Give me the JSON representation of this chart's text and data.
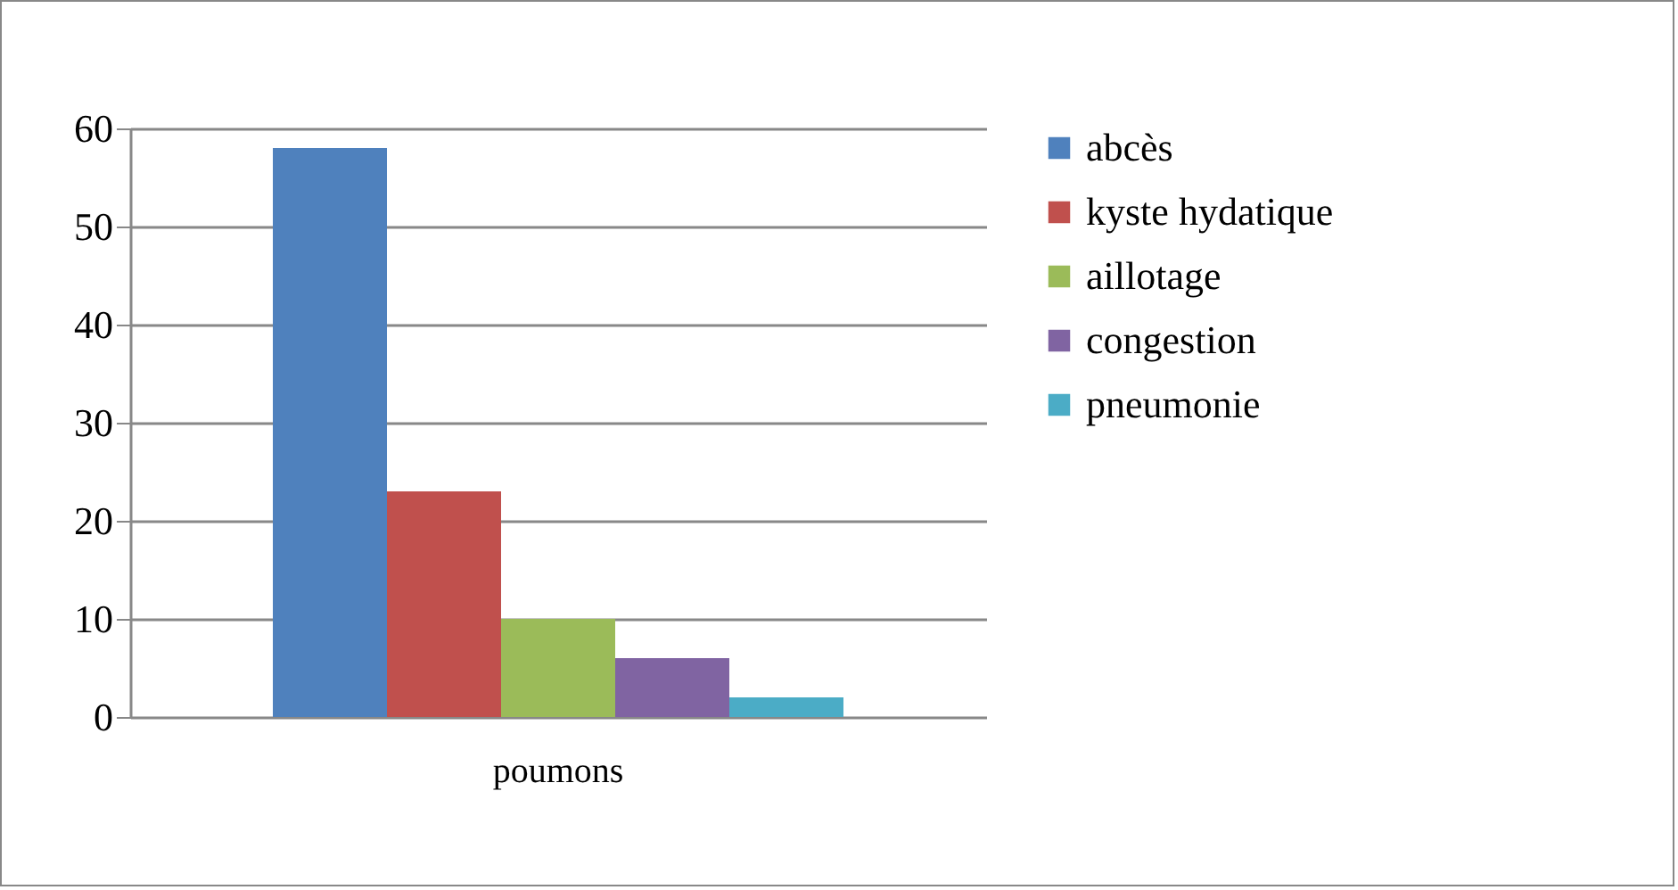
{
  "chart_data": {
    "type": "bar",
    "categories": [
      "poumons"
    ],
    "series": [
      {
        "name": "abcès",
        "color": "#4f81bd",
        "values": [
          58
        ]
      },
      {
        "name": "kyste hydatique",
        "color": "#c0504d",
        "values": [
          23
        ]
      },
      {
        "name": "aillotage",
        "color": "#9bbb59",
        "values": [
          10
        ]
      },
      {
        "name": "congestion",
        "color": "#8064a2",
        "values": [
          6
        ]
      },
      {
        "name": "pneumonie",
        "color": "#4bacc6",
        "values": [
          2
        ]
      }
    ],
    "ylim": [
      0,
      60
    ],
    "yticks": [
      0,
      10,
      20,
      30,
      40,
      50,
      60
    ],
    "grid": true,
    "legend": "right"
  }
}
